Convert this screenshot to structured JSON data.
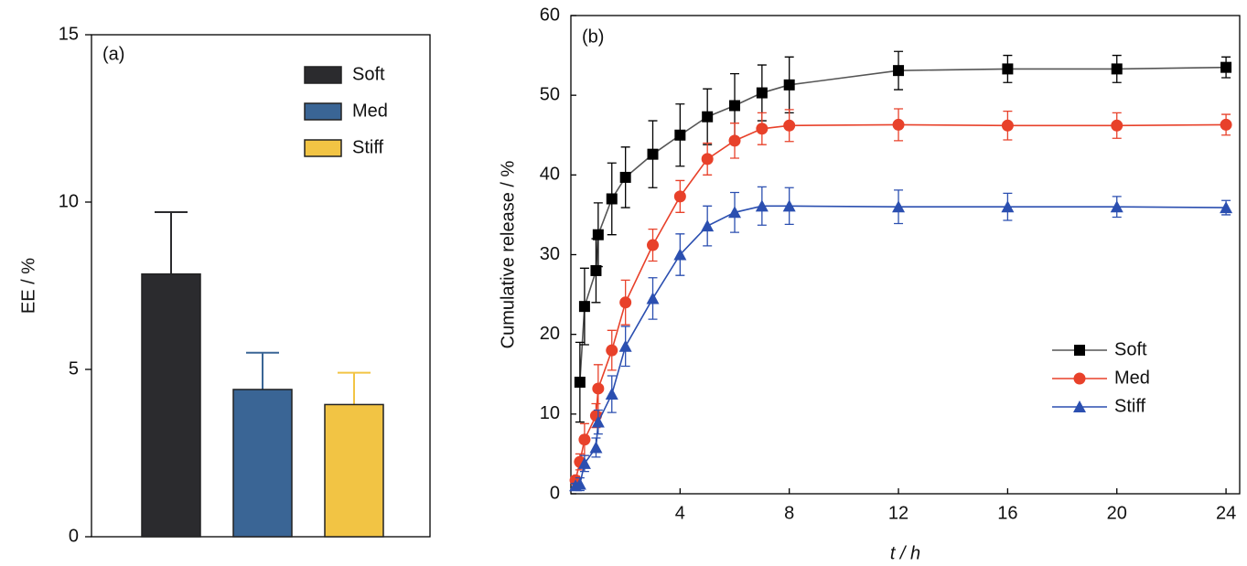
{
  "chart_data": [
    {
      "type": "bar",
      "panel": "(a)",
      "ylabel": "EE / %",
      "ylim": [
        0,
        15
      ],
      "yticks": [
        0,
        5,
        10,
        15
      ],
      "legend": "upper right",
      "series": [
        {
          "name": "Soft",
          "color": "#2b2b2e",
          "values": [
            7.85
          ],
          "errors": [
            1.85
          ]
        },
        {
          "name": "Med",
          "color": "#3a6595",
          "values": [
            4.4
          ],
          "errors": [
            1.1
          ]
        },
        {
          "name": "Stiff",
          "color": "#f2c444",
          "values": [
            3.95
          ],
          "errors": [
            0.95
          ]
        }
      ]
    },
    {
      "type": "line",
      "panel": "(b)",
      "xlabel": "t / h",
      "ylabel": "Cumulative release / %",
      "xlim": [
        0,
        24.5
      ],
      "ylim": [
        0,
        60
      ],
      "xticks": [
        4,
        8,
        12,
        16,
        20,
        24
      ],
      "yticks": [
        0,
        10,
        20,
        30,
        40,
        50,
        60
      ],
      "legend": "lower right",
      "x": [
        0.17,
        0.33,
        0.5,
        0.92,
        1,
        1.5,
        2,
        3,
        4,
        5,
        6,
        7,
        8,
        12,
        16,
        20,
        24
      ],
      "series": [
        {
          "name": "Soft",
          "color": "#000000",
          "line_color": "#555555",
          "marker": "square",
          "values": [
            null,
            14,
            23.5,
            28,
            32.5,
            37,
            39.7,
            42.6,
            45,
            47.3,
            48.7,
            50.3,
            51.3,
            53.1,
            53.3,
            53.3,
            53.5
          ],
          "errors": [
            null,
            5,
            4.8,
            4,
            4,
            4.5,
            3.8,
            4.2,
            3.9,
            3.5,
            4,
            3.5,
            3.5,
            2.4,
            1.7,
            1.7,
            1.3
          ]
        },
        {
          "name": "Med",
          "color": "#e8412a",
          "line_color": "#e8412a",
          "marker": "circle",
          "values": [
            1.7,
            4,
            6.8,
            9.8,
            13.2,
            18,
            24,
            31.2,
            37.3,
            42,
            44.3,
            45.8,
            46.2,
            46.3,
            46.2,
            46.2,
            46.3
          ],
          "errors": [
            0.5,
            1,
            2,
            1.5,
            3,
            2.5,
            2.8,
            2,
            2,
            2,
            2.2,
            2,
            2,
            2,
            1.8,
            1.6,
            1.3
          ]
        },
        {
          "name": "Stiff",
          "color": "#2b4fb0",
          "line_color": "#2b4fb0",
          "marker": "triangle",
          "values": [
            1,
            1.2,
            3.8,
            5.8,
            9,
            12.5,
            18.5,
            24.5,
            30,
            33.6,
            35.3,
            36.1,
            36.1,
            36,
            36,
            36,
            35.9
          ],
          "errors": [
            0.3,
            0.8,
            1,
            1.2,
            1.5,
            2.3,
            2.5,
            2.6,
            2.6,
            2.5,
            2.5,
            2.4,
            2.3,
            2.1,
            1.7,
            1.3,
            0.9
          ]
        }
      ]
    }
  ]
}
